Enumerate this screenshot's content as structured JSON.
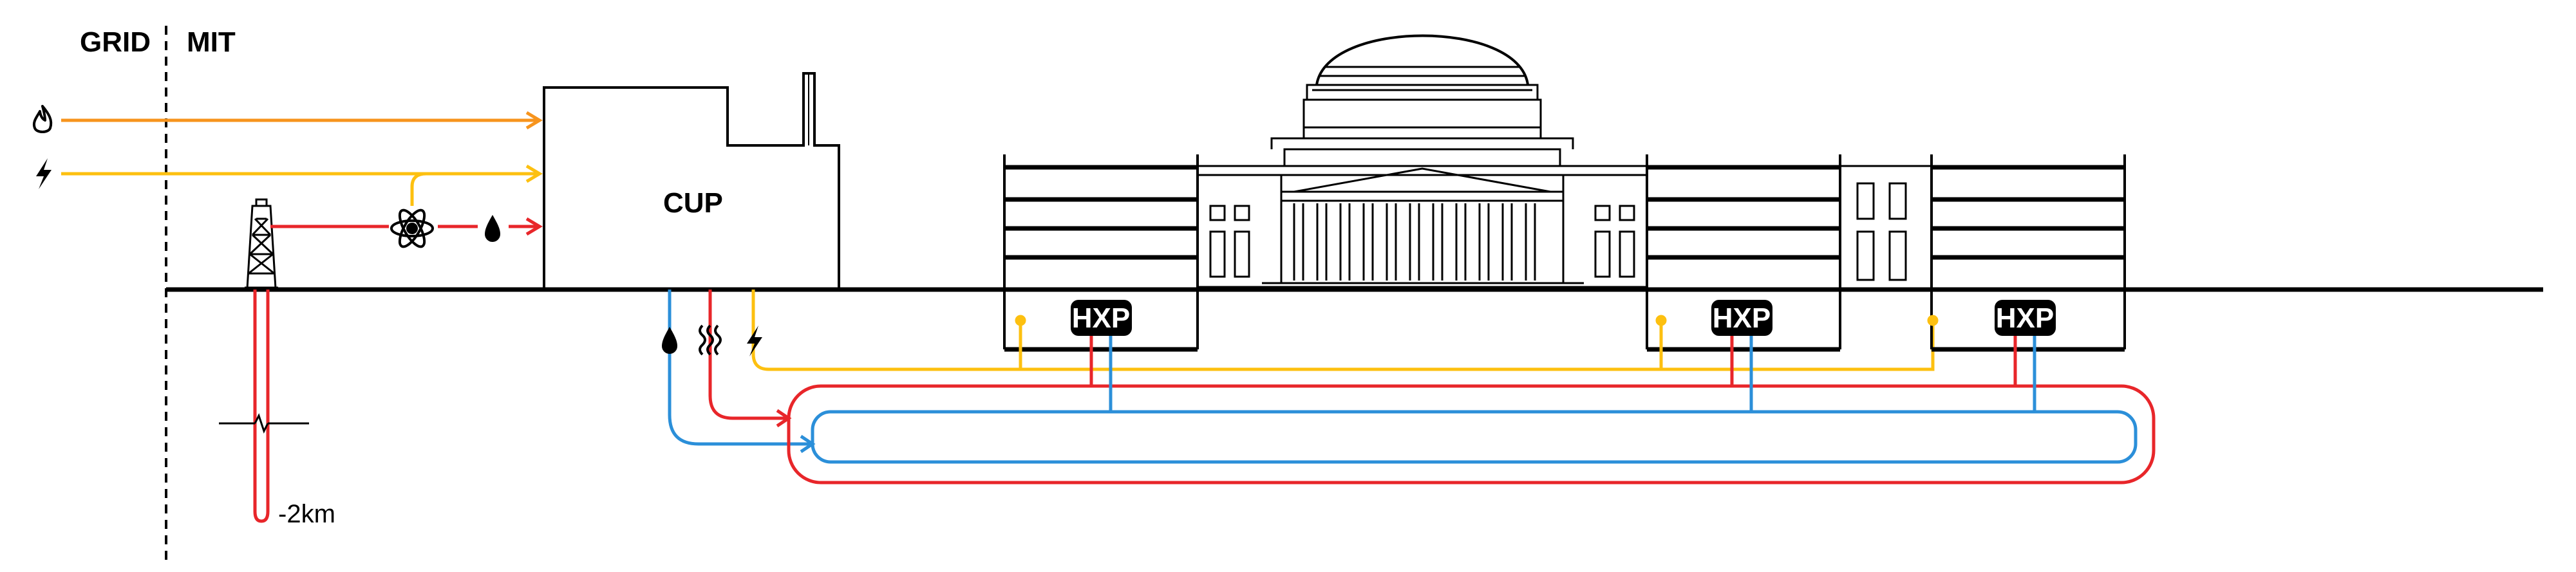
{
  "labels": {
    "grid": "GRID",
    "mit": "MIT",
    "cup": "CUP",
    "hxp_1": "HXP",
    "hxp_2": "HXP",
    "hxp_3": "HXP",
    "depth": "-2km"
  },
  "icons": {
    "gas": "flame-icon",
    "electricity": "lightning-bolt-icon",
    "nuclear": "atom-icon",
    "water": "water-drop-icon",
    "heat": "heat-waves-icon",
    "drill": "drilling-rig-icon"
  },
  "colors": {
    "gas_line": "#f7941d",
    "electric_line": "#fdc010",
    "hot_line": "#e8262a",
    "cold_line": "#2b8fd9",
    "structure": "#000000"
  }
}
